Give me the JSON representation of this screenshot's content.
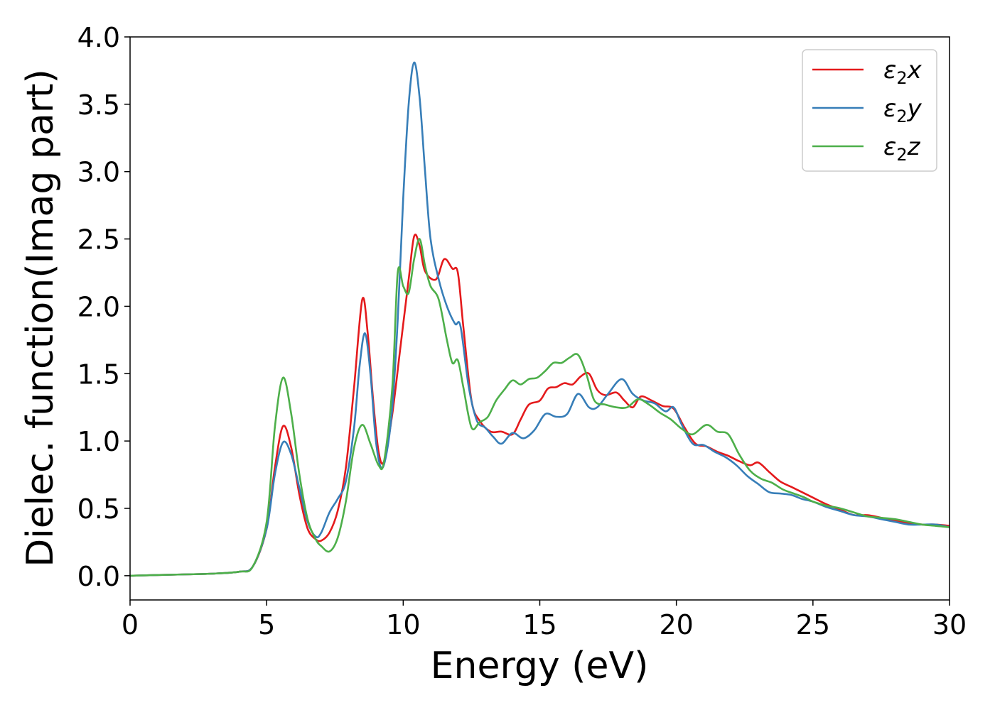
{
  "chart_data": {
    "type": "line",
    "xlabel": "Energy (eV)",
    "ylabel": "Dielec. function(Imag part)",
    "xlim": [
      0,
      30
    ],
    "ylim": [
      -0.18,
      4.0
    ],
    "xticks": [
      "0",
      "5",
      "10",
      "15",
      "20",
      "25",
      "30"
    ],
    "yticks": [
      "0.0",
      "0.5",
      "1.0",
      "1.5",
      "2.0",
      "2.5",
      "3.0",
      "3.5",
      "4.0"
    ],
    "grid": false,
    "legend_position": "top-right",
    "series": [
      {
        "name": "ε2x",
        "legend": {
          "base": "ε",
          "sub": "2",
          "tail": "x"
        },
        "color": "#e41a1c",
        "points": [
          [
            0,
            0
          ],
          [
            2,
            0.01
          ],
          [
            3,
            0.015
          ],
          [
            4,
            0.03
          ],
          [
            4.5,
            0.07
          ],
          [
            5.0,
            0.35
          ],
          [
            5.3,
            0.8
          ],
          [
            5.6,
            1.11
          ],
          [
            5.9,
            0.95
          ],
          [
            6.2,
            0.6
          ],
          [
            6.5,
            0.35
          ],
          [
            6.8,
            0.27
          ],
          [
            7.0,
            0.26
          ],
          [
            7.3,
            0.32
          ],
          [
            7.6,
            0.48
          ],
          [
            7.9,
            0.8
          ],
          [
            8.2,
            1.4
          ],
          [
            8.5,
            2.05
          ],
          [
            8.7,
            1.8
          ],
          [
            8.9,
            1.3
          ],
          [
            9.1,
            0.92
          ],
          [
            9.3,
            0.85
          ],
          [
            9.6,
            1.2
          ],
          [
            9.9,
            1.7
          ],
          [
            10.2,
            2.2
          ],
          [
            10.4,
            2.52
          ],
          [
            10.6,
            2.45
          ],
          [
            10.8,
            2.26
          ],
          [
            11.2,
            2.2
          ],
          [
            11.5,
            2.35
          ],
          [
            11.8,
            2.28
          ],
          [
            12.0,
            2.25
          ],
          [
            12.2,
            1.85
          ],
          [
            12.5,
            1.3
          ],
          [
            12.8,
            1.15
          ],
          [
            13.2,
            1.07
          ],
          [
            13.6,
            1.07
          ],
          [
            14.0,
            1.05
          ],
          [
            14.3,
            1.16
          ],
          [
            14.6,
            1.27
          ],
          [
            15.0,
            1.3
          ],
          [
            15.3,
            1.39
          ],
          [
            15.6,
            1.4
          ],
          [
            15.9,
            1.43
          ],
          [
            16.2,
            1.42
          ],
          [
            16.5,
            1.48
          ],
          [
            16.8,
            1.5
          ],
          [
            17.1,
            1.38
          ],
          [
            17.4,
            1.34
          ],
          [
            17.8,
            1.36
          ],
          [
            18.1,
            1.3
          ],
          [
            18.4,
            1.25
          ],
          [
            18.7,
            1.33
          ],
          [
            19.1,
            1.3
          ],
          [
            19.5,
            1.26
          ],
          [
            19.9,
            1.24
          ],
          [
            20.3,
            1.1
          ],
          [
            20.7,
            0.98
          ],
          [
            21.1,
            0.96
          ],
          [
            21.5,
            0.92
          ],
          [
            21.9,
            0.89
          ],
          [
            22.3,
            0.85
          ],
          [
            22.7,
            0.82
          ],
          [
            23.0,
            0.84
          ],
          [
            23.4,
            0.77
          ],
          [
            23.8,
            0.7
          ],
          [
            24.2,
            0.66
          ],
          [
            24.6,
            0.62
          ],
          [
            25.0,
            0.58
          ],
          [
            25.5,
            0.53
          ],
          [
            26.0,
            0.49
          ],
          [
            26.5,
            0.45
          ],
          [
            27.0,
            0.45
          ],
          [
            27.5,
            0.43
          ],
          [
            28.0,
            0.41
          ],
          [
            28.5,
            0.39
          ],
          [
            29.0,
            0.38
          ],
          [
            29.5,
            0.38
          ],
          [
            30.0,
            0.37
          ]
        ]
      },
      {
        "name": "ε2y",
        "legend": {
          "base": "ε",
          "sub": "2",
          "tail": "y"
        },
        "color": "#377eb8",
        "points": [
          [
            0,
            0
          ],
          [
            2,
            0.01
          ],
          [
            3,
            0.015
          ],
          [
            4,
            0.03
          ],
          [
            4.5,
            0.07
          ],
          [
            5.0,
            0.35
          ],
          [
            5.3,
            0.75
          ],
          [
            5.6,
            0.99
          ],
          [
            5.9,
            0.9
          ],
          [
            6.2,
            0.65
          ],
          [
            6.5,
            0.4
          ],
          [
            6.8,
            0.29
          ],
          [
            7.0,
            0.32
          ],
          [
            7.3,
            0.47
          ],
          [
            7.6,
            0.57
          ],
          [
            7.9,
            0.7
          ],
          [
            8.2,
            1.1
          ],
          [
            8.4,
            1.55
          ],
          [
            8.6,
            1.8
          ],
          [
            8.8,
            1.5
          ],
          [
            9.0,
            1.0
          ],
          [
            9.2,
            0.8
          ],
          [
            9.4,
            0.92
          ],
          [
            9.6,
            1.25
          ],
          [
            9.8,
            1.9
          ],
          [
            10.0,
            2.8
          ],
          [
            10.2,
            3.5
          ],
          [
            10.4,
            3.81
          ],
          [
            10.6,
            3.55
          ],
          [
            10.8,
            3.0
          ],
          [
            11.0,
            2.5
          ],
          [
            11.3,
            2.2
          ],
          [
            11.6,
            2.0
          ],
          [
            11.9,
            1.87
          ],
          [
            12.1,
            1.85
          ],
          [
            12.4,
            1.4
          ],
          [
            12.7,
            1.15
          ],
          [
            13.0,
            1.1
          ],
          [
            13.3,
            1.03
          ],
          [
            13.6,
            0.98
          ],
          [
            14.0,
            1.06
          ],
          [
            14.4,
            1.02
          ],
          [
            14.8,
            1.08
          ],
          [
            15.2,
            1.2
          ],
          [
            15.6,
            1.18
          ],
          [
            16.0,
            1.2
          ],
          [
            16.4,
            1.35
          ],
          [
            16.8,
            1.25
          ],
          [
            17.1,
            1.25
          ],
          [
            17.5,
            1.35
          ],
          [
            18.0,
            1.46
          ],
          [
            18.4,
            1.35
          ],
          [
            18.8,
            1.3
          ],
          [
            19.2,
            1.28
          ],
          [
            19.6,
            1.22
          ],
          [
            19.9,
            1.25
          ],
          [
            20.2,
            1.12
          ],
          [
            20.6,
            0.98
          ],
          [
            21.0,
            0.97
          ],
          [
            21.4,
            0.92
          ],
          [
            21.8,
            0.88
          ],
          [
            22.2,
            0.82
          ],
          [
            22.6,
            0.74
          ],
          [
            23.0,
            0.68
          ],
          [
            23.4,
            0.62
          ],
          [
            23.8,
            0.61
          ],
          [
            24.2,
            0.6
          ],
          [
            24.6,
            0.57
          ],
          [
            25.0,
            0.55
          ],
          [
            25.5,
            0.51
          ],
          [
            26.0,
            0.48
          ],
          [
            26.5,
            0.45
          ],
          [
            27.0,
            0.44
          ],
          [
            27.5,
            0.42
          ],
          [
            28.0,
            0.4
          ],
          [
            28.5,
            0.38
          ],
          [
            29.0,
            0.38
          ],
          [
            29.5,
            0.38
          ],
          [
            30.0,
            0.36
          ]
        ]
      },
      {
        "name": "ε2z",
        "legend": {
          "base": "ε",
          "sub": "2",
          "tail": "z"
        },
        "color": "#4daf4a",
        "points": [
          [
            0,
            0
          ],
          [
            2,
            0.01
          ],
          [
            3,
            0.015
          ],
          [
            4,
            0.03
          ],
          [
            4.5,
            0.07
          ],
          [
            5.0,
            0.4
          ],
          [
            5.3,
            1.1
          ],
          [
            5.6,
            1.47
          ],
          [
            5.9,
            1.2
          ],
          [
            6.2,
            0.75
          ],
          [
            6.5,
            0.42
          ],
          [
            6.8,
            0.27
          ],
          [
            7.0,
            0.22
          ],
          [
            7.3,
            0.18
          ],
          [
            7.6,
            0.28
          ],
          [
            7.9,
            0.55
          ],
          [
            8.2,
            0.95
          ],
          [
            8.5,
            1.12
          ],
          [
            8.8,
            0.98
          ],
          [
            9.1,
            0.82
          ],
          [
            9.3,
            0.85
          ],
          [
            9.6,
            1.4
          ],
          [
            9.8,
            2.25
          ],
          [
            10.0,
            2.15
          ],
          [
            10.2,
            2.1
          ],
          [
            10.4,
            2.35
          ],
          [
            10.6,
            2.5
          ],
          [
            10.8,
            2.3
          ],
          [
            11.0,
            2.15
          ],
          [
            11.3,
            2.05
          ],
          [
            11.6,
            1.75
          ],
          [
            11.8,
            1.58
          ],
          [
            12.0,
            1.6
          ],
          [
            12.2,
            1.4
          ],
          [
            12.5,
            1.1
          ],
          [
            12.8,
            1.14
          ],
          [
            13.1,
            1.18
          ],
          [
            13.4,
            1.3
          ],
          [
            13.7,
            1.38
          ],
          [
            14.0,
            1.45
          ],
          [
            14.3,
            1.42
          ],
          [
            14.6,
            1.46
          ],
          [
            14.9,
            1.47
          ],
          [
            15.2,
            1.52
          ],
          [
            15.5,
            1.58
          ],
          [
            15.8,
            1.58
          ],
          [
            16.1,
            1.62
          ],
          [
            16.4,
            1.64
          ],
          [
            16.7,
            1.5
          ],
          [
            17.0,
            1.3
          ],
          [
            17.4,
            1.27
          ],
          [
            17.8,
            1.25
          ],
          [
            18.2,
            1.25
          ],
          [
            18.6,
            1.31
          ],
          [
            19.0,
            1.27
          ],
          [
            19.4,
            1.21
          ],
          [
            19.8,
            1.16
          ],
          [
            20.2,
            1.09
          ],
          [
            20.6,
            1.05
          ],
          [
            21.1,
            1.12
          ],
          [
            21.5,
            1.07
          ],
          [
            21.9,
            1.05
          ],
          [
            22.3,
            0.9
          ],
          [
            22.7,
            0.78
          ],
          [
            23.1,
            0.72
          ],
          [
            23.5,
            0.69
          ],
          [
            23.9,
            0.64
          ],
          [
            24.3,
            0.61
          ],
          [
            24.7,
            0.58
          ],
          [
            25.0,
            0.55
          ],
          [
            25.5,
            0.52
          ],
          [
            26.0,
            0.5
          ],
          [
            26.5,
            0.47
          ],
          [
            27.0,
            0.44
          ],
          [
            27.5,
            0.43
          ],
          [
            28.0,
            0.42
          ],
          [
            28.5,
            0.4
          ],
          [
            29.0,
            0.38
          ],
          [
            29.5,
            0.37
          ],
          [
            30.0,
            0.36
          ]
        ]
      }
    ]
  }
}
